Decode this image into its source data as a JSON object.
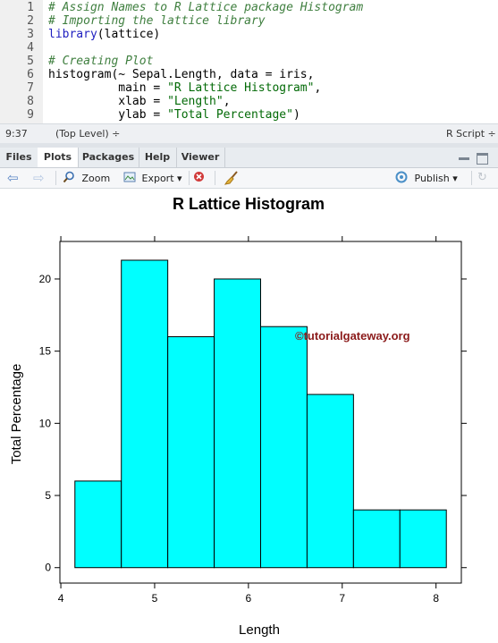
{
  "editor": {
    "lines": [
      {
        "num": "1",
        "parts": [
          {
            "t": "# Assign Names to R Lattice package Histogram",
            "c": "cm"
          }
        ]
      },
      {
        "num": "2",
        "parts": [
          {
            "t": "# Importing the lattice library",
            "c": "cm"
          }
        ]
      },
      {
        "num": "3",
        "parts": [
          {
            "t": "library",
            "c": "kw"
          },
          {
            "t": "(lattice)",
            "c": "plain"
          }
        ]
      },
      {
        "num": "4",
        "parts": []
      },
      {
        "num": "5",
        "parts": [
          {
            "t": "# Creating Plot",
            "c": "cm"
          }
        ]
      },
      {
        "num": "6",
        "parts": [
          {
            "t": "histogram(~ Sepal.Length, data = iris,",
            "c": "plain"
          }
        ]
      },
      {
        "num": "7",
        "parts": [
          {
            "t": "          main = ",
            "c": "plain"
          },
          {
            "t": "\"R Lattice Histogram\"",
            "c": "str"
          },
          {
            "t": ",",
            "c": "plain"
          }
        ]
      },
      {
        "num": "8",
        "parts": [
          {
            "t": "          xlab = ",
            "c": "plain"
          },
          {
            "t": "\"Length\"",
            "c": "str"
          },
          {
            "t": ",",
            "c": "plain"
          }
        ]
      },
      {
        "num": "9",
        "parts": [
          {
            "t": "          ylab = ",
            "c": "plain"
          },
          {
            "t": "\"Total Percentage\"",
            "c": "str"
          },
          {
            "t": ")",
            "c": "plain"
          }
        ]
      }
    ]
  },
  "status": {
    "position": "9:37",
    "scope": "(Top Level) ÷",
    "filetype": "R Script ÷"
  },
  "tabs": [
    "Files",
    "Plots",
    "Packages",
    "Help",
    "Viewer"
  ],
  "active_tab": "Plots",
  "toolbar": {
    "zoom": "Zoom",
    "export": "Export ▾",
    "publish": "Publish ▾"
  },
  "watermark": "©tutorialgateway.org",
  "chart_data": {
    "type": "bar",
    "title": "R Lattice Histogram",
    "xlabel": "Length",
    "ylabel": "Total Percentage",
    "bin_edges": [
      4.15,
      4.645,
      5.14,
      5.635,
      6.13,
      6.625,
      7.12,
      7.615,
      8.11
    ],
    "values": [
      6.0,
      21.3,
      16.0,
      20.0,
      16.7,
      12.0,
      4.0,
      4.0
    ],
    "xlim": [
      3.99,
      8.27
    ],
    "ylim": [
      -1.07,
      22.6
    ],
    "xticks": [
      4,
      5,
      6,
      7,
      8
    ],
    "yticks": [
      0,
      5,
      10,
      15,
      20
    ],
    "bar_color": "#00ffff"
  }
}
